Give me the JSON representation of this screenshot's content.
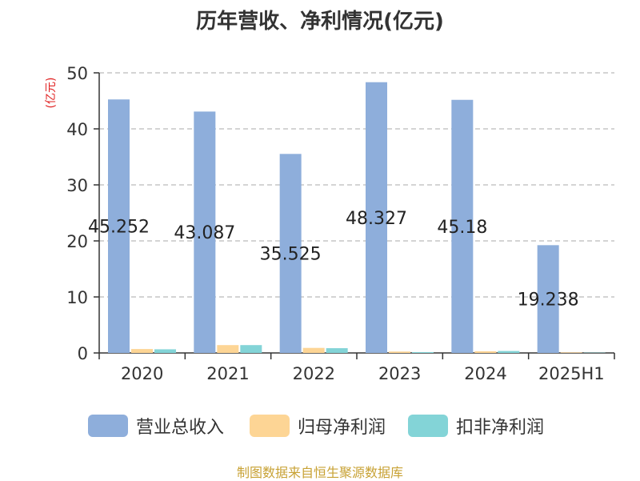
{
  "chart_data": {
    "type": "bar",
    "title": "历年营收、净利情况(亿元)",
    "ylabel": "(亿元)",
    "xlabel": "",
    "ylim": [
      0,
      50
    ],
    "yticks": [
      0,
      10,
      20,
      30,
      40,
      50
    ],
    "grid": true,
    "legend_position": "bottom",
    "categories": [
      "2020",
      "2021",
      "2022",
      "2023",
      "2024",
      "2025H1"
    ],
    "series": [
      {
        "name": "营业总收入",
        "color": "#8eaedb",
        "values": [
          45.252,
          43.087,
          35.525,
          48.327,
          45.18,
          19.238
        ],
        "labels": [
          "45.252",
          "43.087",
          "35.525",
          "48.327",
          "45.18",
          "19.238"
        ]
      },
      {
        "name": "归母净利润",
        "color": "#fdd595",
        "values": [
          0.7,
          1.4,
          0.9,
          0.25,
          0.3,
          0.1
        ]
      },
      {
        "name": "扣非净利润",
        "color": "#83d4d7",
        "values": [
          0.65,
          1.4,
          0.85,
          0.15,
          0.35,
          0.05
        ]
      }
    ]
  },
  "source": "制图数据来自恒生聚源数据库"
}
